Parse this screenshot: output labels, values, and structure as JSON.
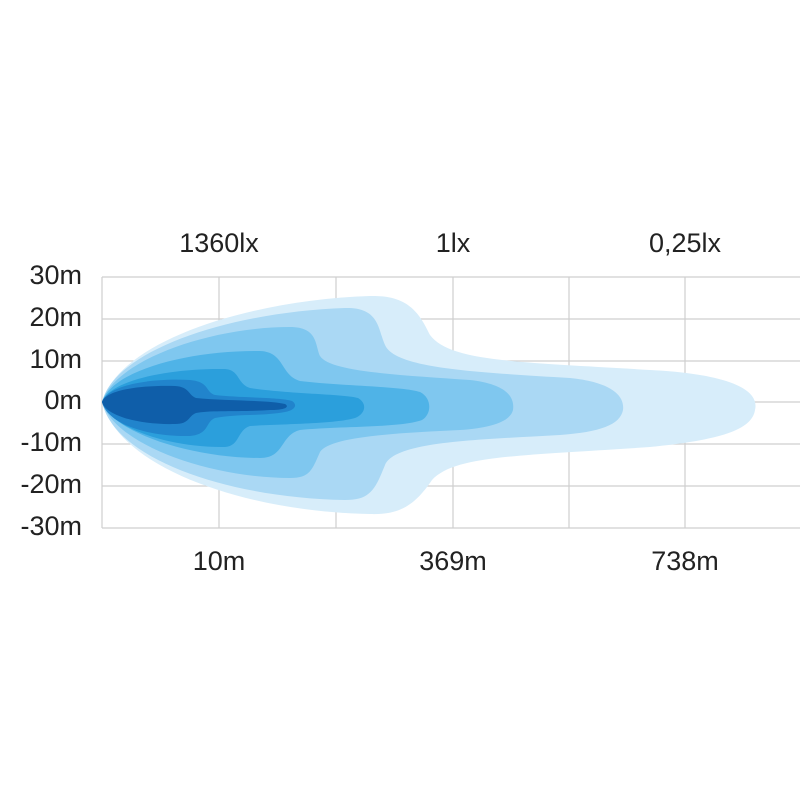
{
  "illuminance_labels": [
    "1360lx",
    "1lx",
    "0,25lx"
  ],
  "y_labels": [
    "30m",
    "20m",
    "10m",
    "0m",
    "-10m",
    "-20m",
    "-30m"
  ],
  "x_labels": [
    "10m",
    "369m",
    "738m"
  ]
}
